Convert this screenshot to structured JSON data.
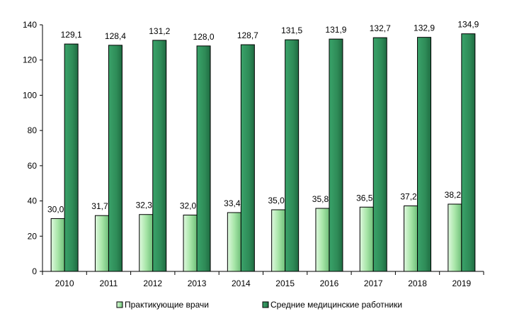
{
  "chart_data": {
    "type": "bar",
    "categories": [
      "2010",
      "2011",
      "2012",
      "2013",
      "2014",
      "2015",
      "2016",
      "2017",
      "2018",
      "2019"
    ],
    "series": [
      {
        "name": "Практикующие врачи",
        "values": [
          30.0,
          31.7,
          32.3,
          32.0,
          33.4,
          35.0,
          35.8,
          36.5,
          37.2,
          38.2
        ],
        "labels": [
          "30,0",
          "31,7",
          "32,3",
          "32,0",
          "33,4",
          "35,0",
          "35,8",
          "36,5",
          "37,2",
          "38,2"
        ],
        "color": "#b8f0b8"
      },
      {
        "name": "Средние медицинские работники",
        "values": [
          129.1,
          128.4,
          131.2,
          128.0,
          128.7,
          131.5,
          131.9,
          132.7,
          132.9,
          134.9
        ],
        "labels": [
          "129,1",
          "128,4",
          "131,2",
          "128,0",
          "128,7",
          "131,5",
          "131,9",
          "132,7",
          "132,9",
          "134,9"
        ],
        "color": "#2e8b57"
      }
    ],
    "ylim": [
      0,
      140
    ],
    "yticks": [
      0,
      20,
      40,
      60,
      80,
      100,
      120,
      140
    ],
    "grid": false,
    "legend": "bottom"
  }
}
